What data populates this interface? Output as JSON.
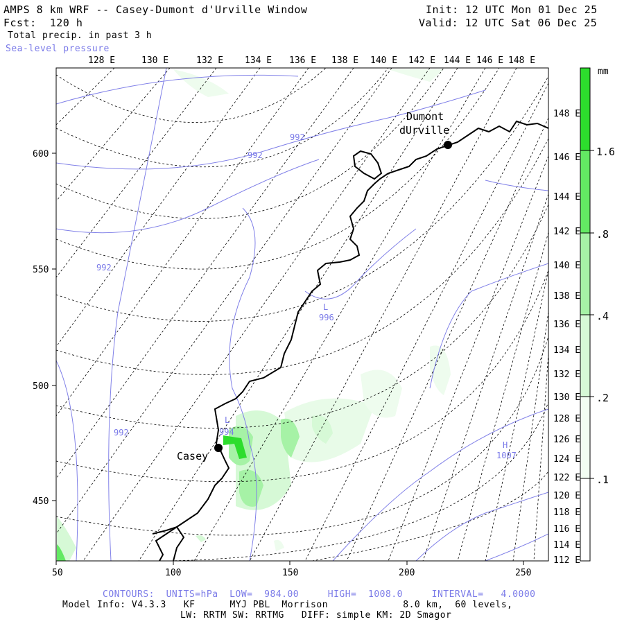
{
  "header": {
    "title": "AMPS 8 km WRF -- Casey-Dumont d'Urville Window",
    "forecast": "Fcst:  120 h",
    "field": "Total precip. in past 3 h",
    "overlay": "Sea-level pressure",
    "init": "Init: 12 UTC Mon 01 Dec 25",
    "valid": "Valid: 12 UTC Sat 06 Dec 25"
  },
  "top_lon_labels": [
    "128 E",
    "130 E",
    "132 E",
    "134 E",
    "136 E",
    "138 E",
    "140 E",
    "142 E",
    "144 E",
    "146 E",
    "148 E"
  ],
  "right_lon_labels": [
    "148 E",
    "146 E",
    "144 E",
    "142 E",
    "140 E",
    "138 E",
    "136 E",
    "134 E",
    "132 E",
    "130 E",
    "128 E",
    "126 E",
    "124 E",
    "122 E",
    "120 E",
    "118 E",
    "116 E",
    "114 E",
    "112 E"
  ],
  "x_axis": {
    "ticks": [
      "50",
      "100",
      "150",
      "200",
      "250"
    ]
  },
  "y_axis": {
    "ticks": [
      "600",
      "550",
      "500",
      "450"
    ]
  },
  "colorbar": {
    "unit": "mm",
    "levels": [
      ".1",
      ".2",
      ".4",
      ".8",
      "1.6"
    ],
    "colors": [
      "#f2fdf2",
      "#d6f9d6",
      "#a6f2a6",
      "#63e963",
      "#2ddd2d"
    ]
  },
  "stations": [
    {
      "name": "Casey"
    },
    {
      "name_line1": "Dumont",
      "name_line2": "dUrville"
    }
  ],
  "isobar_labels": [
    "992",
    "992",
    "992",
    "992",
    "996",
    "L",
    "L",
    "994",
    "H",
    "1007"
  ],
  "footer": {
    "contours": "CONTOURS:  UNITS=hPa  LOW=  984.00     HIGH=  1008.0     INTERVAL=   4.0000",
    "info1": "Model Info: V4.3.3   KF      MYJ PBL  Morrison             8.0 km,  60 levels,",
    "info2": "LW: RRTM SW: RRTMG   DIFF: simple KM: 2D Smagor"
  }
}
